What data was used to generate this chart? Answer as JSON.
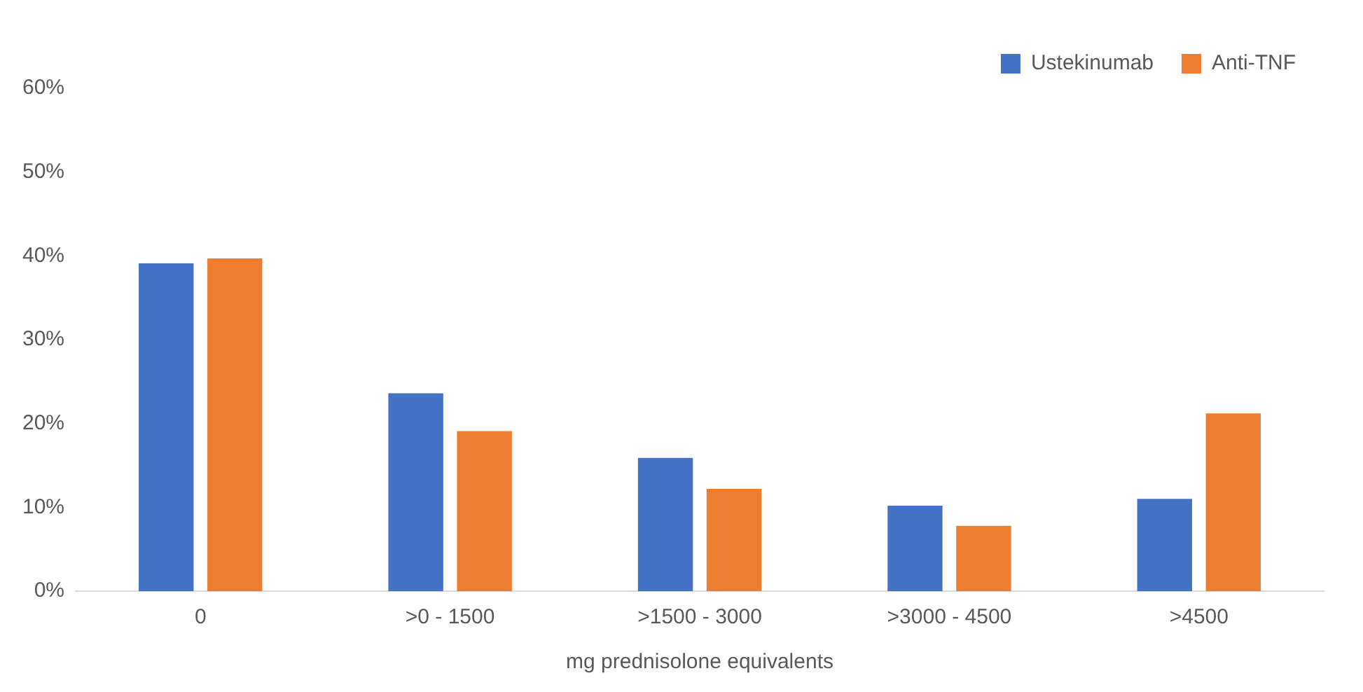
{
  "chart_data": {
    "type": "bar",
    "xlabel": "mg prednisolone equivalents",
    "categories": [
      "0",
      ">0 - 1500",
      ">1500 - 3000",
      ">3000 - 4500",
      ">4500"
    ],
    "series": [
      {
        "name": "Ustekinumab",
        "color": "#4472c4",
        "values": [
          39.1,
          23.6,
          15.9,
          10.2,
          11.0
        ]
      },
      {
        "name": "Anti-TNF",
        "color": "#ed7d31",
        "values": [
          39.7,
          19.1,
          12.2,
          7.8,
          21.2
        ]
      }
    ],
    "ylim": [
      0,
      60
    ],
    "yticks": [
      {
        "value": 0,
        "label": "0%"
      },
      {
        "value": 10,
        "label": "10%"
      },
      {
        "value": 20,
        "label": "20%"
      },
      {
        "value": 30,
        "label": "30%"
      },
      {
        "value": 40,
        "label": "40%"
      },
      {
        "value": 50,
        "label": "50%"
      },
      {
        "value": 60,
        "label": "60%"
      }
    ],
    "grid": false,
    "legend": "top right"
  }
}
